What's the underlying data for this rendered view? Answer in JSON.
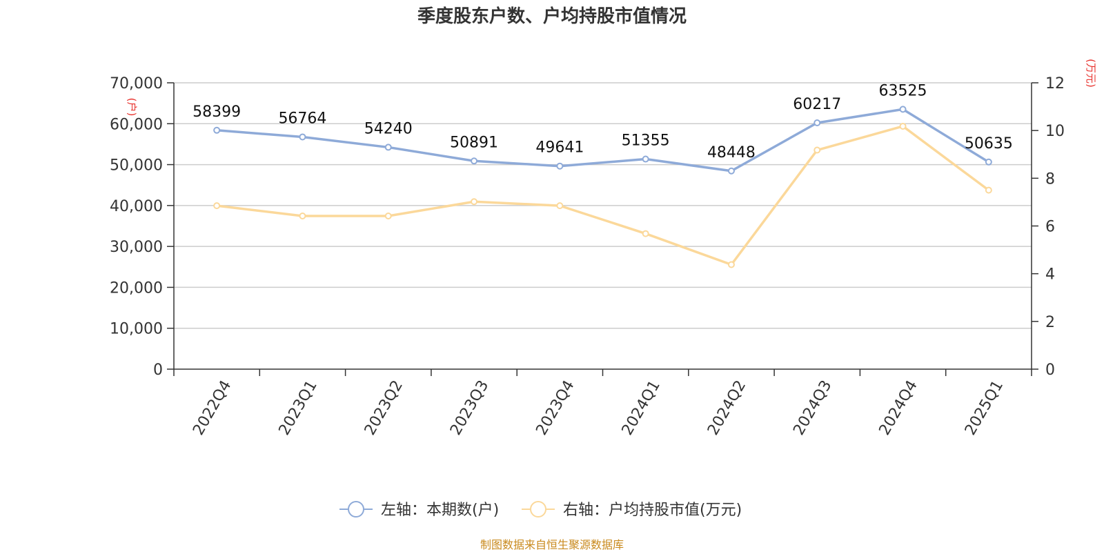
{
  "chart_data": {
    "type": "line",
    "title": "季度股东户数、户均持股市值情况",
    "categories": [
      "2022Q4",
      "2023Q1",
      "2023Q2",
      "2023Q3",
      "2023Q4",
      "2024Q1",
      "2024Q2",
      "2024Q3",
      "2024Q4",
      "2025Q1"
    ],
    "series": [
      {
        "name": "左轴：本期数(户)",
        "axis": "left",
        "color": "#8eaad8",
        "values": [
          58399,
          56764,
          54240,
          50891,
          49641,
          51355,
          48448,
          60217,
          63525,
          50635
        ],
        "labels": [
          "58399",
          "56764",
          "54240",
          "50891",
          "49641",
          "51355",
          "48448",
          "60217",
          "63525",
          "50635"
        ]
      },
      {
        "name": "右轴：户均持股市值(万元)",
        "axis": "right",
        "color": "#fbd89a",
        "values": [
          6.85,
          6.42,
          6.42,
          7.02,
          6.85,
          5.68,
          4.38,
          9.18,
          10.18,
          7.5
        ]
      }
    ],
    "left_axis": {
      "unit": "(户)",
      "ylim": [
        0,
        70000
      ],
      "ticks": [
        0,
        10000,
        20000,
        30000,
        40000,
        50000,
        60000,
        70000
      ],
      "tick_labels": [
        "0",
        "10,000",
        "20,000",
        "30,000",
        "40,000",
        "50,000",
        "60,000",
        "70,000"
      ]
    },
    "right_axis": {
      "unit": "(万元)",
      "ylim": [
        0,
        12
      ],
      "ticks": [
        0,
        2,
        4,
        6,
        8,
        10,
        12
      ],
      "tick_labels": [
        "0",
        "2",
        "4",
        "6",
        "8",
        "10",
        "12"
      ]
    },
    "grid": true,
    "legend_position": "bottom-center",
    "source": "制图数据来自恒生聚源数据库"
  }
}
